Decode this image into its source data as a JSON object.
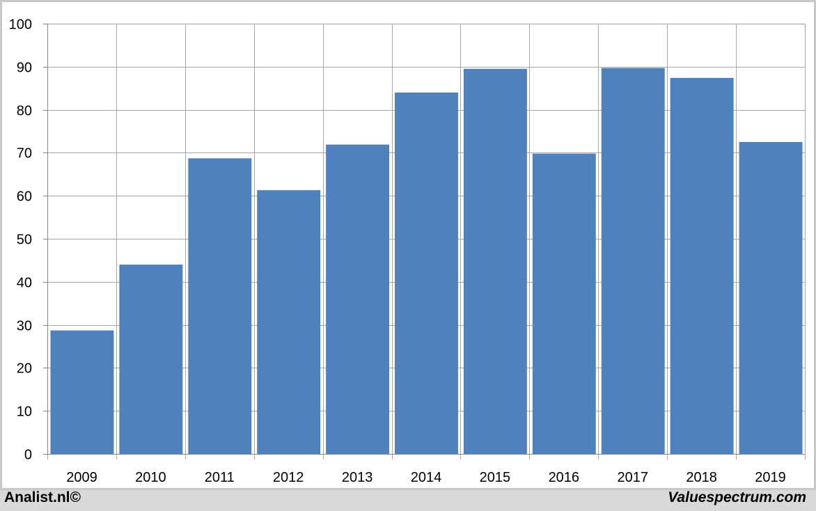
{
  "chart_data": {
    "type": "bar",
    "categories": [
      "2009",
      "2010",
      "2011",
      "2012",
      "2013",
      "2014",
      "2015",
      "2016",
      "2017",
      "2018",
      "2019"
    ],
    "values": [
      28.7,
      44.0,
      68.7,
      61.3,
      71.9,
      84.0,
      89.5,
      69.8,
      89.7,
      87.4,
      72.5
    ],
    "title": "",
    "xlabel": "",
    "ylabel": "",
    "ylim": [
      0,
      100
    ],
    "yticks": [
      0,
      10,
      20,
      30,
      40,
      50,
      60,
      70,
      80,
      90,
      100
    ],
    "grid": true,
    "legend": "none",
    "bar_color": "#4f81bd",
    "grid_color": "#a6a6a6"
  },
  "footer": {
    "left": "Analist.nl©",
    "right": "Valuespectrum.com"
  }
}
